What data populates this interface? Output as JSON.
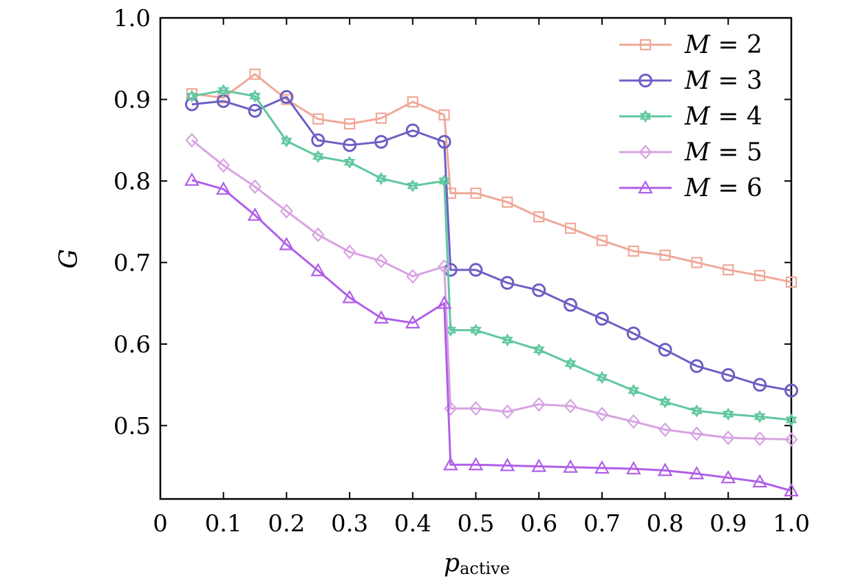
{
  "chart_data": {
    "type": "line",
    "title": "",
    "xlabel": {
      "main": "p",
      "subscript": "active"
    },
    "ylabel": "G",
    "xlim": [
      0,
      1.0
    ],
    "ylim": [
      0.41,
      1.0
    ],
    "xticks": [
      0,
      0.1,
      0.2,
      0.3,
      0.4,
      0.5,
      0.6,
      0.7,
      0.8,
      0.9,
      1.0
    ],
    "xtick_labels": [
      "0",
      "0.1",
      "0.2",
      "0.3",
      "0.4",
      "0.5",
      "0.6",
      "0.7",
      "0.8",
      "0.9",
      "1.0"
    ],
    "yticks": [
      0.5,
      0.6,
      0.7,
      0.8,
      0.9,
      1.0
    ],
    "ytick_labels": [
      "0.5",
      "0.6",
      "0.7",
      "0.8",
      "0.9",
      "1.0"
    ],
    "grid": false,
    "legend_position": "top-right",
    "x": [
      0.05,
      0.1,
      0.15,
      0.2,
      0.25,
      0.3,
      0.35,
      0.4,
      0.45,
      0.46,
      0.5,
      0.55,
      0.6,
      0.65,
      0.7,
      0.75,
      0.8,
      0.85,
      0.9,
      0.95,
      1.0
    ],
    "series": [
      {
        "name": "M = 2",
        "var": "M",
        "value": "2",
        "color": "#f0a898",
        "marker": "square",
        "values": [
          0.907,
          0.902,
          0.931,
          0.9,
          0.876,
          0.87,
          0.877,
          0.897,
          0.881,
          0.785,
          0.785,
          0.774,
          0.756,
          0.742,
          0.727,
          0.714,
          0.709,
          0.7,
          0.691,
          0.684,
          0.676
        ]
      },
      {
        "name": "M = 3",
        "var": "M",
        "value": "3",
        "color": "#6b5fc4",
        "marker": "circle",
        "values": [
          0.894,
          0.898,
          0.886,
          0.903,
          0.85,
          0.844,
          0.848,
          0.862,
          0.848,
          0.691,
          0.691,
          0.675,
          0.666,
          0.648,
          0.631,
          0.613,
          0.593,
          0.573,
          0.562,
          0.55,
          0.543
        ]
      },
      {
        "name": "M = 4",
        "var": "M",
        "value": "4",
        "color": "#5fc79e",
        "marker": "star",
        "values": [
          0.904,
          0.911,
          0.904,
          0.849,
          0.83,
          0.823,
          0.803,
          0.794,
          0.8,
          0.617,
          0.617,
          0.605,
          0.593,
          0.576,
          0.559,
          0.543,
          0.529,
          0.518,
          0.514,
          0.511,
          0.507
        ]
      },
      {
        "name": "M = 5",
        "var": "M",
        "value": "5",
        "color": "#d8a2e2",
        "marker": "diamond",
        "values": [
          0.85,
          0.819,
          0.793,
          0.763,
          0.734,
          0.713,
          0.702,
          0.683,
          0.695,
          0.521,
          0.521,
          0.517,
          0.526,
          0.524,
          0.514,
          0.505,
          0.495,
          0.49,
          0.485,
          0.484,
          0.483
        ]
      },
      {
        "name": "M = 6",
        "var": "M",
        "value": "6",
        "color": "#b05ee8",
        "marker": "triangle",
        "values": [
          0.801,
          0.79,
          0.758,
          0.722,
          0.69,
          0.657,
          0.632,
          0.626,
          0.65,
          0.452,
          0.452,
          0.451,
          0.45,
          0.449,
          0.448,
          0.447,
          0.445,
          0.441,
          0.436,
          0.431,
          0.42
        ]
      }
    ]
  }
}
